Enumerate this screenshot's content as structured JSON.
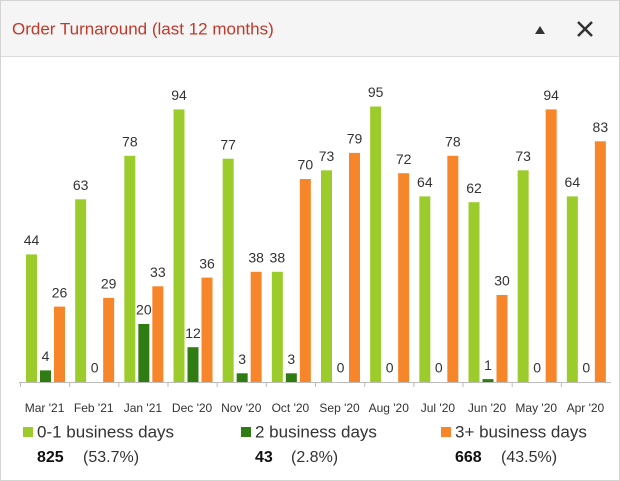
{
  "chart_data": {
    "type": "bar",
    "title": "Order Turnaround (last 12 months)",
    "categories": [
      "Mar '21",
      "Feb '21",
      "Jan '21",
      "Dec '20",
      "Nov '20",
      "Oct '20",
      "Sep '20",
      "Aug '20",
      "Jul '20",
      "Jun '20",
      "May '20",
      "Apr '20"
    ],
    "ylim": [
      0,
      100
    ],
    "series": [
      {
        "name": "0-1 business days",
        "color": "#9ccc2c",
        "values": [
          44,
          63,
          78,
          94,
          77,
          38,
          73,
          95,
          64,
          62,
          73,
          64
        ],
        "total": 825,
        "share_label": "(53.7%)"
      },
      {
        "name": "2 business days",
        "color": "#2f7d12",
        "values": [
          4,
          0,
          20,
          12,
          3,
          3,
          0,
          0,
          0,
          1,
          0,
          0
        ],
        "total": 43,
        "share_label": "(2.8%)"
      },
      {
        "name": "3+ business days",
        "color": "#f7862a",
        "values": [
          26,
          29,
          33,
          36,
          38,
          70,
          79,
          72,
          78,
          30,
          94,
          83
        ],
        "total": 668,
        "share_label": "(43.5%)"
      }
    ]
  }
}
